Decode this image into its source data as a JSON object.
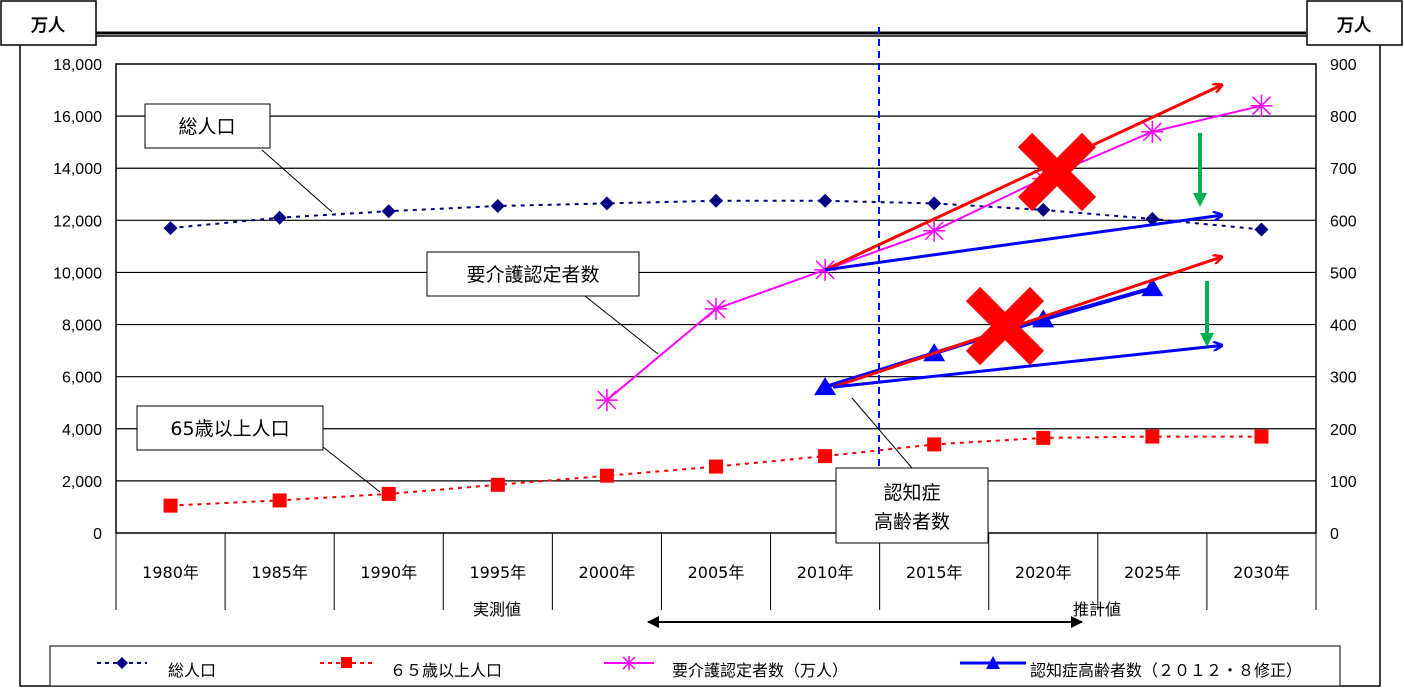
{
  "chart_data": {
    "type": "line",
    "categories": [
      "1980年",
      "1985年",
      "1990年",
      "1995年",
      "2000年",
      "2005年",
      "2010年",
      "2015年",
      "2020年",
      "2025年",
      "2030年"
    ],
    "left_axis": {
      "unit": "万人",
      "ticks": [
        "0",
        "2,000",
        "4,000",
        "6,000",
        "8,000",
        "10,000",
        "12,000",
        "14,000",
        "16,000",
        "18,000"
      ],
      "ylim": [
        0,
        18000
      ]
    },
    "right_axis": {
      "unit": "万人",
      "ticks": [
        "0",
        "100",
        "200",
        "300",
        "400",
        "500",
        "600",
        "700",
        "800",
        "900"
      ],
      "ylim": [
        0,
        900
      ]
    },
    "period_labels": {
      "actual": "実測値",
      "estimate": "推計値"
    },
    "series": [
      {
        "name": "総人口",
        "axis": "left",
        "style": "dotted",
        "marker": "diamond",
        "color": "#000080",
        "values": [
          11700,
          12100,
          12350,
          12550,
          12650,
          12750,
          12750,
          12650,
          12400,
          12050,
          11650
        ]
      },
      {
        "name": "６５歳以上人口",
        "axis": "left",
        "style": "dotted",
        "marker": "square",
        "color": "#ff0000",
        "values": [
          1050,
          1250,
          1500,
          1850,
          2200,
          2550,
          2950,
          3400,
          3650,
          3700,
          3700
        ]
      },
      {
        "name": "要介護認定者数（万人）",
        "axis": "right",
        "style": "solid",
        "marker": "asterisk",
        "color": "#ff00ff",
        "values": [
          null,
          null,
          null,
          null,
          255,
          430,
          505,
          580,
          680,
          770,
          820
        ]
      },
      {
        "name": "認知症高齢者数（２０１２・８修正）",
        "axis": "right",
        "style": "solid",
        "marker": "triangle",
        "color": "#0000ff",
        "values": [
          null,
          null,
          null,
          null,
          null,
          null,
          280,
          345,
          410,
          470,
          null
        ]
      }
    ],
    "annotations": {
      "total_pop": "総人口",
      "care": "要介護認定者数",
      "elderly65": "65歳以上人口",
      "dementia": [
        "認知症",
        "高齢者数"
      ]
    },
    "overlay": {
      "care_up_to": 860,
      "care_down_to": 610,
      "dementia_up_to": 530,
      "dementia_down_to": 360
    },
    "colors": {
      "red_arrow": "#ff0000",
      "blue_arrow": "#0000ff",
      "green_arrow": "#00b050",
      "cross": "#ff0000",
      "divider": "#0000ff"
    },
    "legend_placement": "bottom",
    "grid": true
  }
}
